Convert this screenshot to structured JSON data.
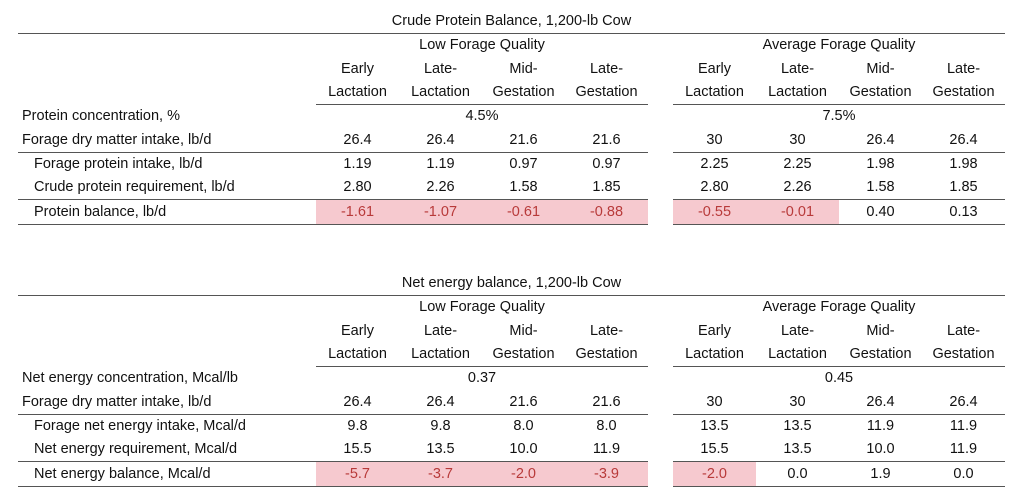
{
  "tables": [
    {
      "title": "Crude Protein Balance, 1,200-lb Cow",
      "groups": [
        "Low Forage Quality",
        "Average Forage Quality"
      ],
      "col_top": [
        "Early",
        "Late-",
        "Mid-",
        "Late-"
      ],
      "col_bottom": [
        "Lactation",
        "Lactation",
        "Gestation",
        "Gestation"
      ],
      "concentration": {
        "label": "Protein concentration, %",
        "values": [
          "4.5%",
          "7.5%"
        ]
      },
      "rows": [
        {
          "label": "Forage dry matter intake, lb/d",
          "indent": false,
          "values": [
            "26.4",
            "26.4",
            "21.6",
            "21.6",
            "30",
            "30",
            "26.4",
            "26.4"
          ],
          "highlight": [
            false,
            false,
            false,
            false,
            false,
            false,
            false,
            false
          ],
          "line_below": true
        },
        {
          "label": "Forage protein intake, lb/d",
          "indent": true,
          "values": [
            "1.19",
            "1.19",
            "0.97",
            "0.97",
            "2.25",
            "2.25",
            "1.98",
            "1.98"
          ],
          "highlight": [
            false,
            false,
            false,
            false,
            false,
            false,
            false,
            false
          ],
          "line_below": false
        },
        {
          "label": "Crude protein requirement, lb/d",
          "indent": true,
          "values": [
            "2.80",
            "2.26",
            "1.58",
            "1.85",
            "2.80",
            "2.26",
            "1.58",
            "1.85"
          ],
          "highlight": [
            false,
            false,
            false,
            false,
            false,
            false,
            false,
            false
          ],
          "line_below": true
        },
        {
          "label": "Protein balance, lb/d",
          "indent": true,
          "values": [
            "-1.61",
            "-1.07",
            "-0.61",
            "-0.88",
            "-0.55",
            "-0.01",
            "0.40",
            "0.13"
          ],
          "highlight": [
            true,
            true,
            true,
            true,
            true,
            true,
            false,
            false
          ],
          "line_below": true
        }
      ]
    },
    {
      "title": "Net energy balance, 1,200-lb Cow",
      "groups": [
        "Low Forage Quality",
        "Average Forage Quality"
      ],
      "col_top": [
        "Early",
        "Late-",
        "Mid-",
        "Late-"
      ],
      "col_bottom": [
        "Lactation",
        "Lactation",
        "Gestation",
        "Gestation"
      ],
      "concentration": {
        "label": "Net energy concentration, Mcal/lb",
        "values": [
          "0.37",
          "0.45"
        ]
      },
      "rows": [
        {
          "label": "Forage dry matter intake, lb/d",
          "indent": false,
          "values": [
            "26.4",
            "26.4",
            "21.6",
            "21.6",
            "30",
            "30",
            "26.4",
            "26.4"
          ],
          "highlight": [
            false,
            false,
            false,
            false,
            false,
            false,
            false,
            false
          ],
          "line_below": true
        },
        {
          "label": "Forage net energy intake, Mcal/d",
          "indent": true,
          "values": [
            "9.8",
            "9.8",
            "8.0",
            "8.0",
            "13.5",
            "13.5",
            "11.9",
            "11.9"
          ],
          "highlight": [
            false,
            false,
            false,
            false,
            false,
            false,
            false,
            false
          ],
          "line_below": false
        },
        {
          "label": "Net energy requirement, Mcal/d",
          "indent": true,
          "values": [
            "15.5",
            "13.5",
            "10.0",
            "11.9",
            "15.5",
            "13.5",
            "10.0",
            "11.9"
          ],
          "highlight": [
            false,
            false,
            false,
            false,
            false,
            false,
            false,
            false
          ],
          "line_below": true
        },
        {
          "label": "Net energy balance, Mcal/d",
          "indent": true,
          "values": [
            "-5.7",
            "-3.7",
            "-2.0",
            "-3.9",
            "-2.0",
            "0.0",
            "1.9",
            "0.0"
          ],
          "highlight": [
            true,
            true,
            true,
            true,
            true,
            false,
            false,
            false
          ],
          "line_below": true
        }
      ]
    }
  ]
}
